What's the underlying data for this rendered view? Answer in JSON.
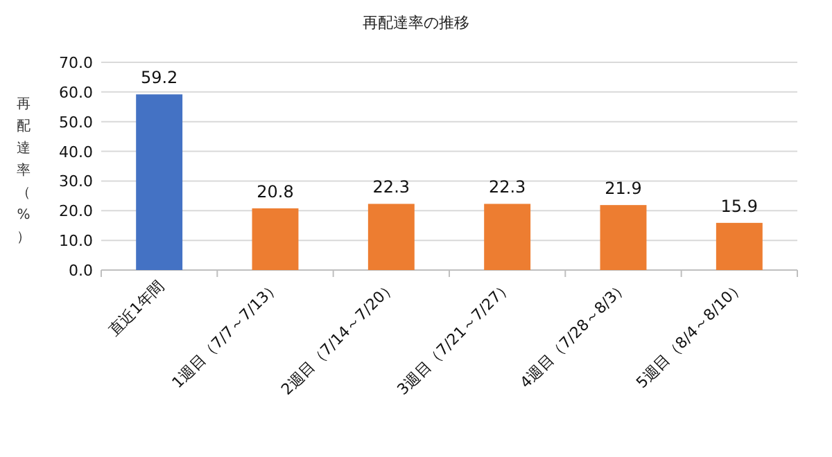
{
  "chart_data": {
    "type": "bar",
    "title": "再配達率の推移",
    "ylabel": "再配達率（%）",
    "categories": [
      "直近1年間",
      "1週目（7/7～7/13）",
      "2週目（7/14～7/20）",
      "3週目（7/21～7/27）",
      "4週目（7/28～8/3）",
      "5週目（8/4～8/10）"
    ],
    "values": [
      59.2,
      20.8,
      22.3,
      22.3,
      21.9,
      15.9
    ],
    "colors": [
      "#4472c4",
      "#ed7d31",
      "#ed7d31",
      "#ed7d31",
      "#ed7d31",
      "#ed7d31"
    ],
    "ylim": [
      0,
      70
    ],
    "yticks": [
      {
        "value": 0,
        "label": "0.0"
      },
      {
        "value": 10,
        "label": "10.0"
      },
      {
        "value": 20,
        "label": "20.0"
      },
      {
        "value": 30,
        "label": "30.0"
      },
      {
        "value": 40,
        "label": "40.0"
      },
      {
        "value": 50,
        "label": "50.0"
      },
      {
        "value": 60,
        "label": "60.0"
      },
      {
        "value": 70,
        "label": "70.0"
      }
    ],
    "grid": "y",
    "data_labels": true
  }
}
